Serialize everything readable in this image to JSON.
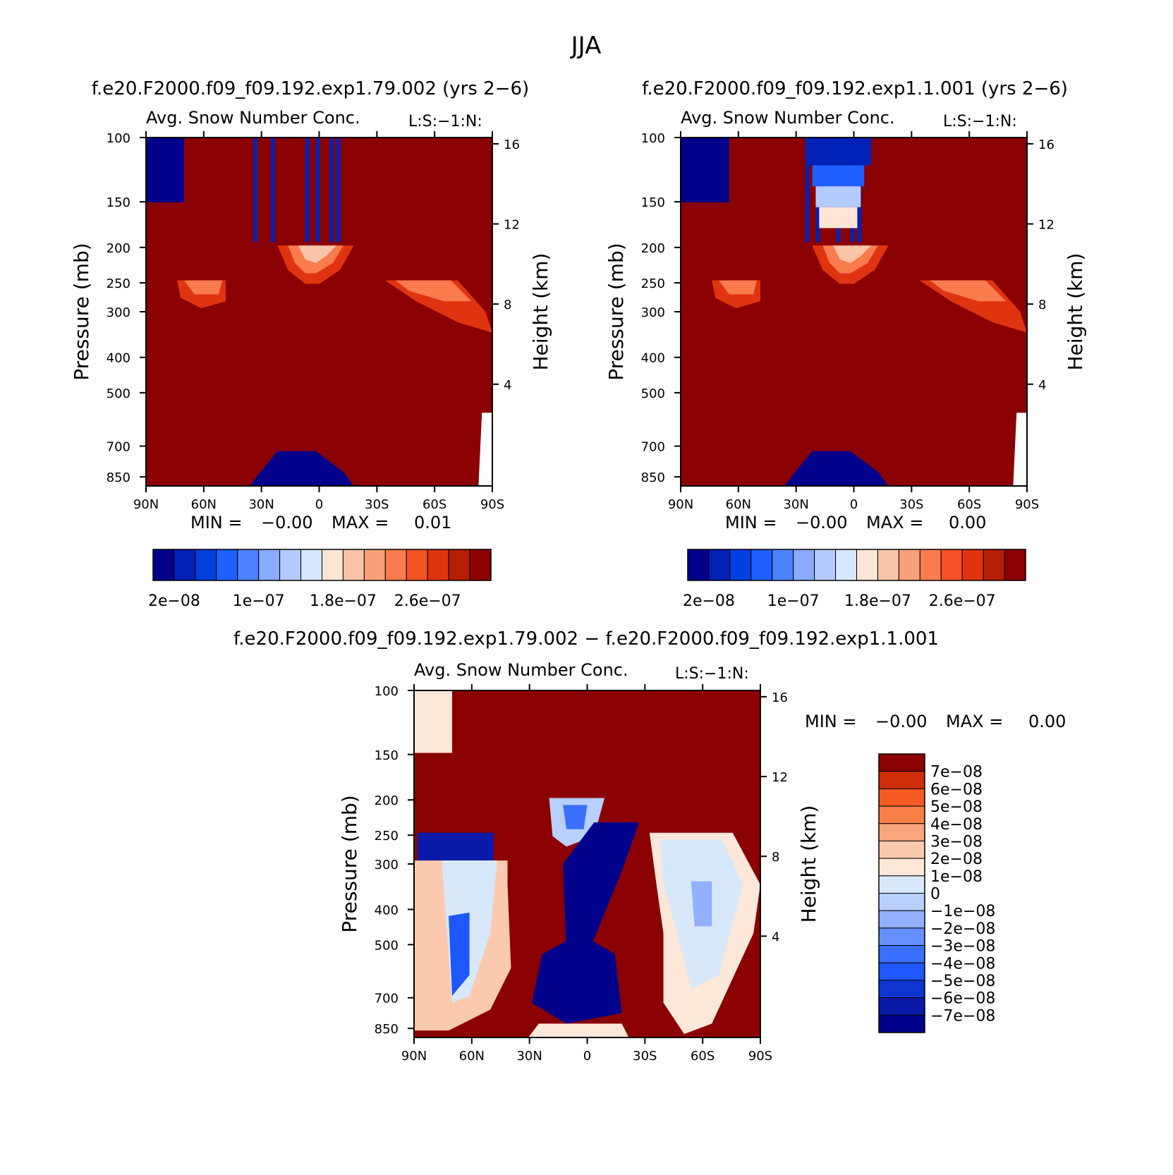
{
  "page_title": "JJA",
  "colors": {
    "panel_cmap": [
      "#00008b",
      "#0021b5",
      "#0040e0",
      "#1e5fff",
      "#4d82ff",
      "#8aaaff",
      "#b3cbff",
      "#d6e8ff",
      "#fde6d6",
      "#fbc4a8",
      "#f9a07a",
      "#f97b4e",
      "#f55226",
      "#e03410",
      "#b51d05",
      "#8b0000"
    ],
    "diff_cmap": [
      "#00008b",
      "#0a1aa8",
      "#0f35d0",
      "#1e56ff",
      "#3b70ff",
      "#6690ff",
      "#92b0ff",
      "#b9cffd",
      "#d7e8fa",
      "#fde7d8",
      "#fbcaae",
      "#f9a57d",
      "#f88047",
      "#f55a22",
      "#cf2e08",
      "#8b0000"
    ]
  },
  "chart_data": [
    {
      "type": "heatmap",
      "panel_title": "f.e20.F2000.f09_f09.192.exp1.79.002 (yrs 2−6)",
      "left_title": "Avg. Snow Number Conc.",
      "right_title": "L:S:−1:N:",
      "ylabel": "Pressure (mb)",
      "ylabel_right": "Height (km)",
      "x_ticks": [
        "90N",
        "60N",
        "30N",
        "0",
        "30S",
        "60S",
        "90S"
      ],
      "y_ticks": [
        100,
        150,
        200,
        250,
        300,
        400,
        500,
        700,
        850
      ],
      "y_ticks_right": [
        16,
        12,
        8,
        4
      ],
      "min_label": "MIN =",
      "min_value": "−0.00",
      "max_label": "MAX =",
      "max_value": "0.01",
      "colorbar_labels": [
        "2e−08",
        "1e−07",
        "1.8e−07",
        "2.6e−07"
      ],
      "colorbar_levels": [
        2e-08,
        4e-08,
        6e-08,
        8e-08,
        1e-07,
        1.2e-07,
        1.4e-07,
        1.6e-07,
        1.8e-07,
        2e-07,
        2.2e-07,
        2.4e-07,
        2.6e-07,
        2.8e-07,
        3e-07
      ]
    },
    {
      "type": "heatmap",
      "panel_title": "f.e20.F2000.f09_f09.192.exp1.1.001 (yrs 2−6)",
      "left_title": "Avg. Snow Number Conc.",
      "right_title": "L:S:−1:N:",
      "ylabel": "Pressure (mb)",
      "ylabel_right": "Height (km)",
      "x_ticks": [
        "90N",
        "60N",
        "30N",
        "0",
        "30S",
        "60S",
        "90S"
      ],
      "y_ticks": [
        100,
        150,
        200,
        250,
        300,
        400,
        500,
        700,
        850
      ],
      "y_ticks_right": [
        16,
        12,
        8,
        4
      ],
      "min_label": "MIN =",
      "min_value": "−0.00",
      "max_label": "MAX =",
      "max_value": "0.00",
      "colorbar_labels": [
        "2e−08",
        "1e−07",
        "1.8e−07",
        "2.6e−07"
      ],
      "colorbar_levels": [
        2e-08,
        4e-08,
        6e-08,
        8e-08,
        1e-07,
        1.2e-07,
        1.4e-07,
        1.6e-07,
        1.8e-07,
        2e-07,
        2.2e-07,
        2.4e-07,
        2.6e-07,
        2.8e-07,
        3e-07
      ]
    },
    {
      "type": "heatmap",
      "panel_title": "f.e20.F2000.f09_f09.192.exp1.79.002 − f.e20.F2000.f09_f09.192.exp1.1.001",
      "left_title": "Avg. Snow Number Conc.",
      "right_title": "L:S:−1:N:",
      "ylabel": "Pressure (mb)",
      "ylabel_right": "Height (km)",
      "x_ticks": [
        "90N",
        "60N",
        "30N",
        "0",
        "30S",
        "60S",
        "90S"
      ],
      "y_ticks": [
        100,
        150,
        200,
        250,
        300,
        400,
        500,
        700,
        850
      ],
      "y_ticks_right": [
        16,
        12,
        8,
        4
      ],
      "min_label": "MIN =",
      "min_value": "−0.00",
      "max_label": "MAX =",
      "max_value": "0.00",
      "colorbar_labels": [
        "7e−08",
        "6e−08",
        "5e−08",
        "4e−08",
        "3e−08",
        "2e−08",
        "1e−08",
        "0",
        "−1e−08",
        "−2e−08",
        "−3e−08",
        "−4e−08",
        "−5e−08",
        "−6e−08",
        "−7e−08"
      ]
    }
  ]
}
